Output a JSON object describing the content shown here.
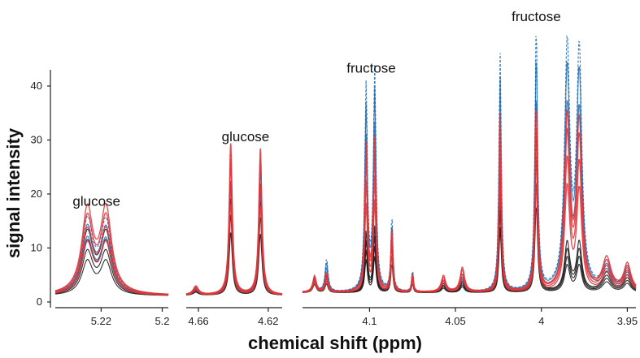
{
  "chart_data": {
    "type": "line",
    "xlabel": "chemical shift (ppm)",
    "ylabel": "signal intensity",
    "ylim": [
      0,
      43
    ],
    "yticks": [
      0,
      10,
      20,
      30,
      40
    ],
    "x_reversed": true,
    "panels": [
      {
        "xlim": [
          5.235,
          5.198
        ],
        "xticks": [
          5.22,
          5.2
        ],
        "xtick_labels": [
          "5.22",
          "5.2"
        ],
        "peaks": [
          {
            "x": 5.2245,
            "width": 0.0022,
            "red": 15.2,
            "black": 11.0,
            "blue": 13.2
          },
          {
            "x": 5.2184,
            "width": 0.0022,
            "red": 15.3,
            "black": 11.0,
            "blue": 13.0
          }
        ],
        "baseline": 1.2
      },
      {
        "xlim": [
          4.667,
          4.612
        ],
        "xticks": [
          4.66,
          4.62
        ],
        "xtick_labels": [
          "4.66",
          "4.62"
        ],
        "peaks": [
          {
            "x": 4.6615,
            "width": 0.0018,
            "red": 1.6,
            "black": 1.0,
            "blue": 1.4
          },
          {
            "x": 4.6415,
            "width": 0.0011,
            "red": 28.0,
            "black": 21.0,
            "blue": 26.0
          },
          {
            "x": 4.6245,
            "width": 0.0011,
            "red": 27.0,
            "black": 20.5,
            "blue": 25.0
          }
        ],
        "baseline": 1.3
      },
      {
        "xlim": [
          4.139,
          3.945
        ],
        "xticks": [
          4.1,
          4.05,
          4.0,
          3.95
        ],
        "xtick_labels": [
          "4.1",
          "4.05",
          "4",
          "3.95"
        ],
        "peaks": [
          {
            "x": 4.132,
            "width": 0.0012,
            "red": 3.0,
            "black": 2.8,
            "blue": 2.5
          },
          {
            "x": 4.125,
            "width": 0.001,
            "red": 3.6,
            "black": 3.0,
            "blue": 6.0
          },
          {
            "x": 4.102,
            "width": 0.0009,
            "red": 27.0,
            "black": 11.0,
            "blue": 38.0
          },
          {
            "x": 4.097,
            "width": 0.0009,
            "red": 28.0,
            "black": 12.0,
            "blue": 41.0
          },
          {
            "x": 4.087,
            "width": 0.0007,
            "red": 12.0,
            "black": 10.0,
            "blue": 14.0
          },
          {
            "x": 4.075,
            "width": 0.0006,
            "red": 3.5,
            "black": 3.0,
            "blue": 4.0
          },
          {
            "x": 4.057,
            "width": 0.0015,
            "red": 3.0,
            "black": 1.5,
            "blue": 2.2
          },
          {
            "x": 4.046,
            "width": 0.0015,
            "red": 4.5,
            "black": 2.0,
            "blue": 3.0
          },
          {
            "x": 4.024,
            "width": 0.0008,
            "red": 33.0,
            "black": 22.0,
            "blue": 44.0
          },
          {
            "x": 4.003,
            "width": 0.0009,
            "red": 35.0,
            "black": 30.0,
            "blue": 49.0
          },
          {
            "x": 3.985,
            "width": 0.0018,
            "red": 32.0,
            "black": 9.0,
            "blue": 45.0
          },
          {
            "x": 3.978,
            "width": 0.0018,
            "red": 31.0,
            "black": 9.0,
            "blue": 44.0
          },
          {
            "x": 3.962,
            "width": 0.003,
            "red": 6.0,
            "black": 3.5,
            "blue": 5.0
          },
          {
            "x": 3.95,
            "width": 0.0025,
            "red": 5.0,
            "black": 3.0,
            "blue": 4.5
          }
        ],
        "baseline": 1.8
      }
    ],
    "series_colors": {
      "red": "#e0373b",
      "black": "#1a1a1a",
      "blue": "#1f6eb5"
    },
    "annotations": [
      {
        "text": "glucose",
        "x": 5.2215,
        "y": 17.8,
        "panel": 0
      },
      {
        "text": "glucose",
        "x": 4.633,
        "y": 29.8,
        "panel": 1
      },
      {
        "text": "fructose",
        "x": 4.099,
        "y": 42.5,
        "panel": 2
      },
      {
        "text": "fructose",
        "x": 4.003,
        "y": 53.0,
        "panel": 2
      }
    ]
  }
}
